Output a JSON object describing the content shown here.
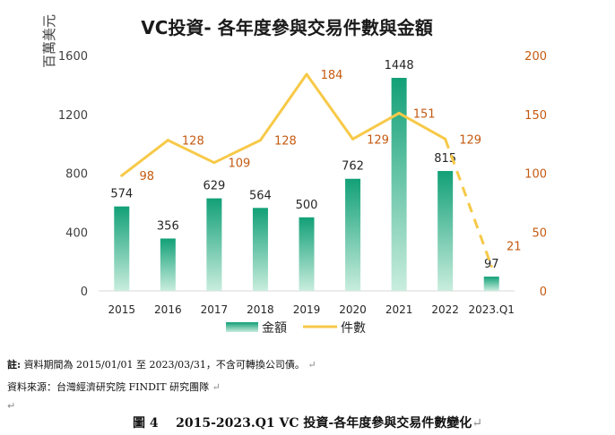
{
  "chart_data": {
    "type": "bar+line",
    "title": "VC投資- 各年度參與交易件數與金額",
    "y_left_label": "百萬美元",
    "categories": [
      "2015",
      "2016",
      "2017",
      "2018",
      "2019",
      "2020",
      "2021",
      "2022",
      "2023.Q1"
    ],
    "series": [
      {
        "name": "金額",
        "type": "bar",
        "axis": "left",
        "values": [
          574,
          356,
          629,
          564,
          500,
          762,
          1448,
          815,
          97
        ]
      },
      {
        "name": "件數",
        "type": "line",
        "axis": "right",
        "values": [
          98,
          128,
          109,
          128,
          184,
          129,
          151,
          129,
          21
        ],
        "dashed_last_segment": true
      }
    ],
    "y_left": {
      "ticks": [
        "0",
        "400",
        "800",
        "1200",
        "1600"
      ],
      "range": [
        0,
        1600
      ]
    },
    "y_right": {
      "ticks": [
        "0",
        "50",
        "100",
        "150",
        "200"
      ],
      "range": [
        0,
        200
      ]
    },
    "grid": false,
    "legend_position": "bottom",
    "colors": {
      "bar_top": "#12A077",
      "bar_bottom": "#C9EDDE",
      "line": "#F7C948",
      "line_label": "#C55A11",
      "right_axis": "#C55A11",
      "bar_label": "#262626",
      "title": "#1a1a1a"
    }
  },
  "notes": {
    "note_lead": "註:",
    "note_text": "資料期間為 2015/01/01 至 2023/03/31，不含可轉換公司債。",
    "source_lead": "資料來源：",
    "source_text": "台灣經濟研究院 FINDIT 研究團隊",
    "para_mark": "↵"
  },
  "caption": {
    "figure_no": "圖 4",
    "text": "2015-2023.Q1 VC 投資-各年度參與交易件數變化"
  }
}
